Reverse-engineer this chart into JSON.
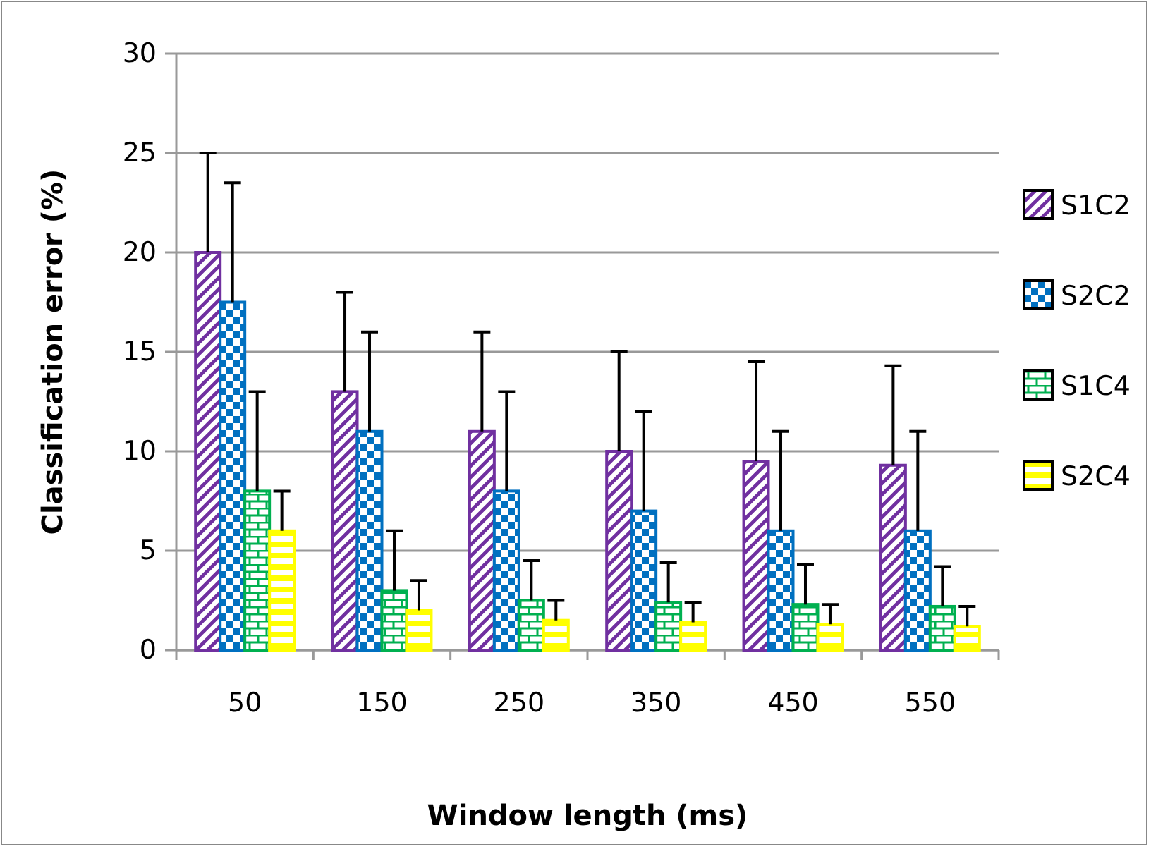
{
  "chart_data": {
    "type": "bar",
    "xlabel": "Window length (ms)",
    "ylabel": "Classification error (%)",
    "categories": [
      "50",
      "150",
      "250",
      "350",
      "450",
      "550"
    ],
    "series": [
      {
        "name": "S1C2",
        "color": "#7030a0",
        "values": [
          20,
          13,
          11,
          10,
          9.5,
          9.3
        ],
        "errors": [
          [
            20,
            25
          ],
          [
            13,
            18
          ],
          [
            11,
            16
          ],
          [
            10,
            15
          ],
          [
            9.5,
            14.5
          ],
          [
            9.3,
            14.3
          ]
        ]
      },
      {
        "name": "S2C2",
        "color": "#0070c0",
        "values": [
          17.5,
          11,
          8,
          7,
          6,
          6
        ],
        "errors": [
          [
            17.5,
            23.5
          ],
          [
            11,
            16
          ],
          [
            8,
            13
          ],
          [
            7,
            12
          ],
          [
            6,
            11
          ],
          [
            6,
            11
          ]
        ]
      },
      {
        "name": "S1C4",
        "color": "#00b050",
        "values": [
          8,
          3,
          2.5,
          2.4,
          2.3,
          2.2
        ],
        "errors": [
          [
            8,
            13
          ],
          [
            3,
            6
          ],
          [
            2.5,
            4.5
          ],
          [
            2.4,
            4.4
          ],
          [
            2.3,
            4.3
          ],
          [
            2.2,
            4.2
          ]
        ]
      },
      {
        "name": "S2C4",
        "color": "#ffff00",
        "values": [
          6,
          2,
          1.5,
          1.4,
          1.3,
          1.2
        ],
        "errors": [
          [
            6,
            8
          ],
          [
            2,
            3.5
          ],
          [
            1.5,
            2.5
          ],
          [
            1.4,
            2.4
          ],
          [
            1.3,
            2.3
          ],
          [
            1.2,
            2.2
          ]
        ]
      }
    ],
    "ylim": [
      0,
      30
    ],
    "yticks": [
      0,
      5,
      10,
      15,
      20,
      25,
      30
    ],
    "grid": "y",
    "legend": "right"
  }
}
